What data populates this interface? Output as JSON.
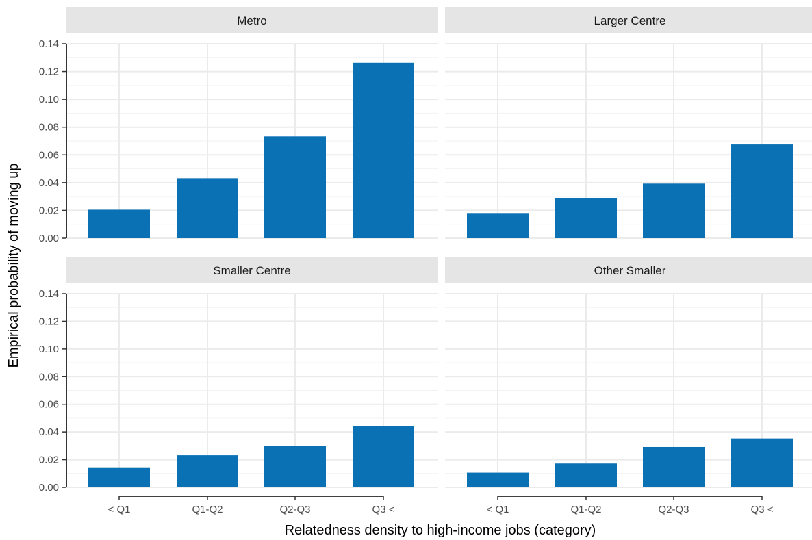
{
  "chart_data": {
    "type": "bar",
    "facet_layout": "2x2",
    "xlabel": "Relatedness density to high-income jobs (category)",
    "ylabel": "Empirical probability of moving up",
    "categories": [
      "< Q1",
      "Q1-Q2",
      "Q2-Q3",
      "Q3 <"
    ],
    "ylim": [
      0,
      0.14
    ],
    "yticks": [
      "0.00",
      "0.02",
      "0.04",
      "0.06",
      "0.08",
      "0.10",
      "0.12",
      "0.14"
    ],
    "grid": true,
    "bar_color": "#0a71b4",
    "strip_color": "#e5e5e5",
    "panels": [
      {
        "title": "Metro",
        "values": [
          0.0205,
          0.0432,
          0.0733,
          0.1263
        ]
      },
      {
        "title": "Larger Centre",
        "values": [
          0.0181,
          0.0288,
          0.0393,
          0.0675
        ]
      },
      {
        "title": "Smaller Centre",
        "values": [
          0.014,
          0.0232,
          0.0297,
          0.0442
        ]
      },
      {
        "title": "Other Smaller",
        "values": [
          0.0106,
          0.0172,
          0.0292,
          0.0353
        ]
      }
    ]
  }
}
